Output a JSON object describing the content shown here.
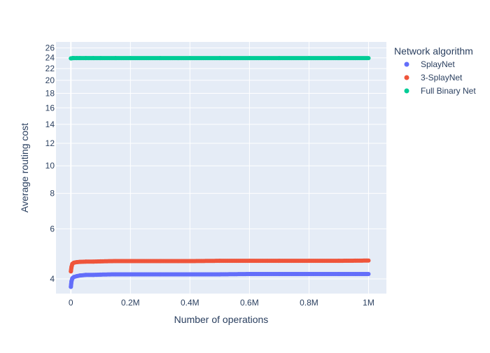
{
  "chart_data": {
    "type": "scatter",
    "title": "",
    "xlabel": "Number of operations",
    "ylabel": "Average routing cost",
    "x_scale": "linear",
    "y_scale": "log",
    "xlim": [
      -50000,
      1060000
    ],
    "ylim": [
      3.55,
      27.3
    ],
    "x_ticks": [
      {
        "value": 0,
        "label": "0"
      },
      {
        "value": 200000,
        "label": "0.2M"
      },
      {
        "value": 400000,
        "label": "0.4M"
      },
      {
        "value": 600000,
        "label": "0.6M"
      },
      {
        "value": 800000,
        "label": "0.8M"
      },
      {
        "value": 1000000,
        "label": "1M"
      }
    ],
    "y_ticks": [
      {
        "value": 4,
        "label": "4"
      },
      {
        "value": 6,
        "label": "6"
      },
      {
        "value": 8,
        "label": "8"
      },
      {
        "value": 10,
        "label": "10"
      },
      {
        "value": 12,
        "label": "12"
      },
      {
        "value": 14,
        "label": "14"
      },
      {
        "value": 16,
        "label": "16"
      },
      {
        "value": 18,
        "label": "18"
      },
      {
        "value": 20,
        "label": "20"
      },
      {
        "value": 22,
        "label": "22"
      },
      {
        "value": 24,
        "label": "24"
      },
      {
        "value": 26,
        "label": "26"
      }
    ],
    "grid": true,
    "legend": {
      "title": "Network algorithm",
      "placement": "right"
    },
    "colors": {
      "plot_background": "#e5ecf6",
      "gridline": "#ffffff",
      "text": "#2a3f5f"
    },
    "series": [
      {
        "name": "SplayNet",
        "color": "#636efa",
        "x": [
          0,
          2000,
          5000,
          10000,
          20000,
          30000,
          50000,
          75000,
          100000,
          150000,
          200000,
          300000,
          400000,
          500000,
          600000,
          700000,
          800000,
          900000,
          1000000
        ],
        "y": [
          3.75,
          3.92,
          4.02,
          4.06,
          4.09,
          4.11,
          4.13,
          4.13,
          4.14,
          4.15,
          4.15,
          4.15,
          4.15,
          4.15,
          4.16,
          4.16,
          4.16,
          4.16,
          4.16
        ]
      },
      {
        "name": "3-SplayNet",
        "color": "#ef553b",
        "x": [
          0,
          2000,
          5000,
          10000,
          20000,
          30000,
          50000,
          75000,
          100000,
          150000,
          200000,
          300000,
          400000,
          500000,
          600000,
          700000,
          800000,
          900000,
          1000000
        ],
        "y": [
          4.25,
          4.4,
          4.52,
          4.56,
          4.58,
          4.59,
          4.6,
          4.6,
          4.61,
          4.62,
          4.62,
          4.62,
          4.62,
          4.63,
          4.63,
          4.63,
          4.63,
          4.63,
          4.64
        ]
      },
      {
        "name": "Full Binary Net",
        "color": "#00cc96",
        "x": [
          0,
          2000,
          5000,
          10000,
          20000,
          30000,
          50000,
          75000,
          100000,
          150000,
          200000,
          300000,
          400000,
          500000,
          600000,
          700000,
          800000,
          900000,
          1000000
        ],
        "y": [
          23.9,
          23.9,
          23.95,
          23.95,
          23.95,
          23.95,
          23.95,
          23.95,
          23.95,
          23.95,
          23.95,
          23.95,
          23.95,
          23.95,
          23.95,
          23.95,
          23.95,
          23.95,
          23.95
        ]
      }
    ]
  }
}
